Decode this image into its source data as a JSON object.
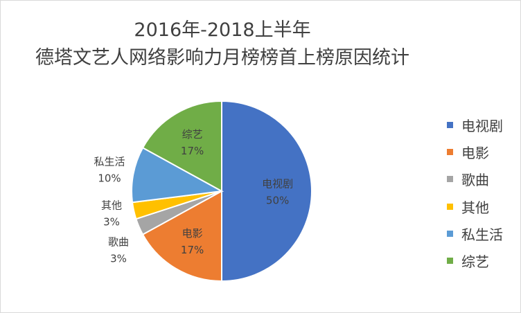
{
  "chart_data": {
    "type": "pie",
    "title": "2016年-2018上半年",
    "subtitle": "德塔文艺人网络影响力月榜榜首上榜原因统计",
    "legend_position": "right",
    "slices": [
      {
        "label": "电视剧",
        "value": 50,
        "display": "50%",
        "color": "#4472C4"
      },
      {
        "label": "电影",
        "value": 17,
        "display": "17%",
        "color": "#ED7D31"
      },
      {
        "label": "歌曲",
        "value": 3,
        "display": "3%",
        "color": "#A5A5A5"
      },
      {
        "label": "其他",
        "value": 3,
        "display": "3%",
        "color": "#FFC000"
      },
      {
        "label": "私生活",
        "value": 10,
        "display": "10%",
        "color": "#5B9BD5"
      },
      {
        "label": "综艺",
        "value": 17,
        "display": "17%",
        "color": "#70AD47"
      }
    ]
  }
}
